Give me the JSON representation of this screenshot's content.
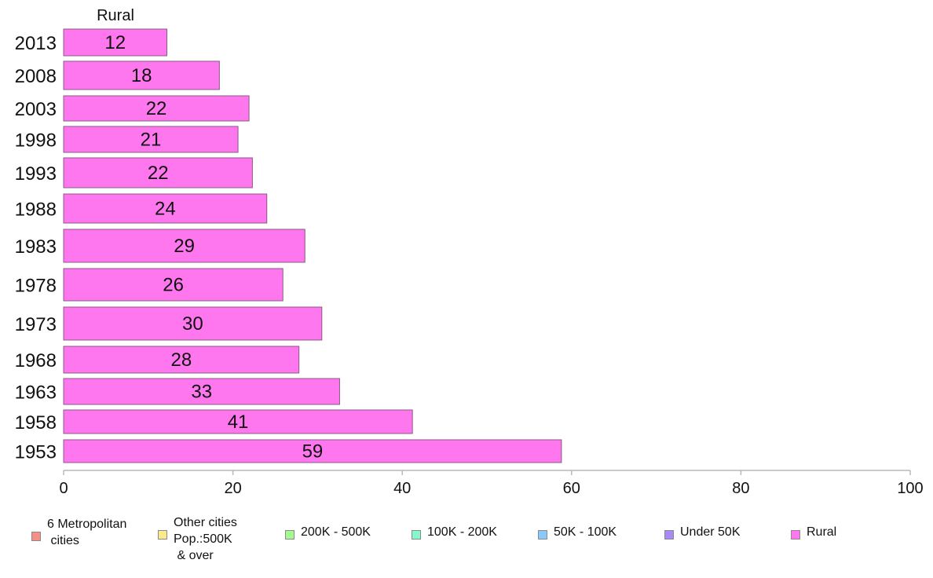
{
  "chart_data": {
    "type": "bar",
    "orientation": "horizontal",
    "panel_title": "Rural",
    "categories": [
      "2013",
      "2008",
      "2003",
      "1998",
      "1993",
      "1988",
      "1983",
      "1978",
      "1973",
      "1968",
      "1963",
      "1958",
      "1953"
    ],
    "series": [
      {
        "name": "Rural",
        "color": "#ff77ee",
        "values": [
          12.2,
          18.4,
          21.9,
          20.6,
          22.3,
          24.0,
          28.5,
          25.9,
          30.5,
          27.8,
          32.6,
          41.2,
          58.8
        ],
        "labels": [
          "12",
          "18",
          "22",
          "21",
          "22",
          "24",
          "29",
          "26",
          "30",
          "28",
          "33",
          "41",
          "59"
        ]
      }
    ],
    "xlim": [
      0,
      100
    ],
    "xticks": [
      "0",
      "20",
      "40",
      "60",
      "80",
      "100"
    ],
    "grid": false,
    "legend_position": "bottom",
    "legend": [
      {
        "label": "6 Metropolitan\n cities",
        "color": "#f88f86"
      },
      {
        "label": "Other cities\nPop.:500K\n & over",
        "color": "#fbe98a"
      },
      {
        "label": "200K - 500K",
        "color": "#a6f98f"
      },
      {
        "label": "100K - 200K",
        "color": "#86f9cc"
      },
      {
        "label": "50K - 100K",
        "color": "#8cc9fb"
      },
      {
        "label": "Under 50K",
        "color": "#a889f8"
      },
      {
        "label": "Rural",
        "color": "#ff77ee"
      }
    ]
  }
}
